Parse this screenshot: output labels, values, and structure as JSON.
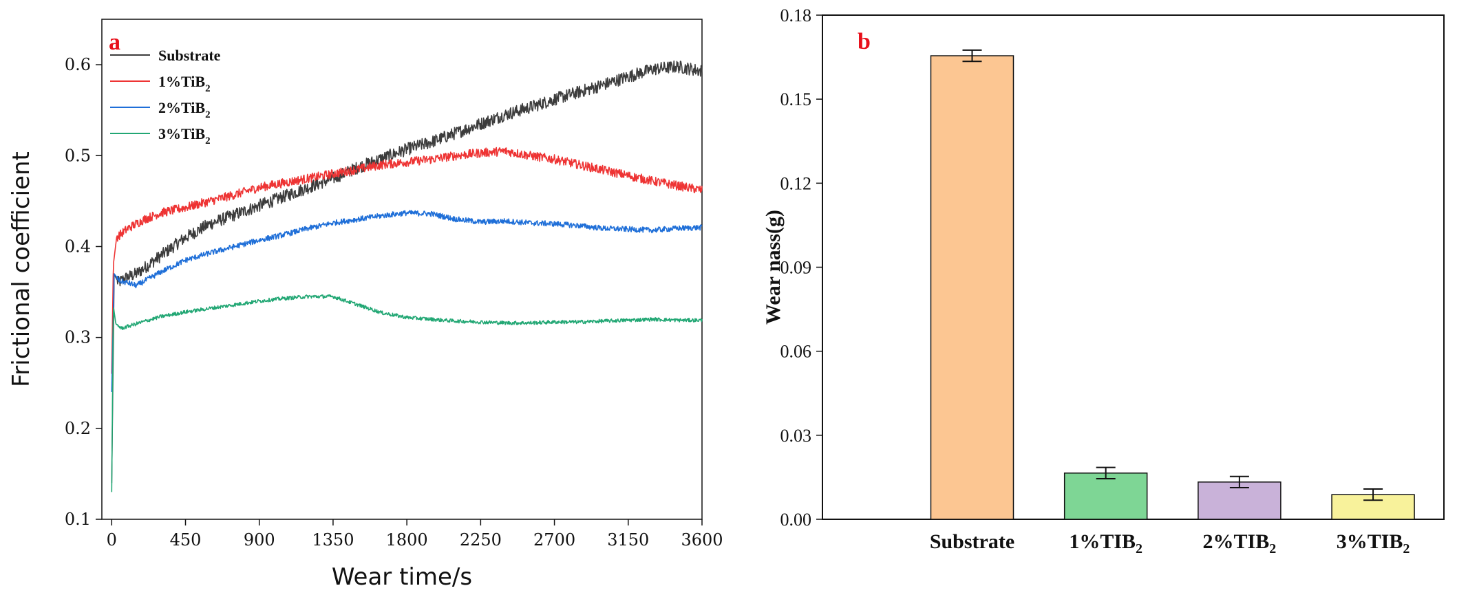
{
  "chart_data": [
    {
      "type": "line",
      "panel_label": "a",
      "panel_label_color": "#e8101b",
      "xlabel": "Wear time/s",
      "ylabel": "Frictional coefficient",
      "xlim": [
        -60,
        3600
      ],
      "ylim": [
        0.1,
        0.65
      ],
      "xticks": [
        0,
        450,
        900,
        1350,
        1800,
        2250,
        2700,
        3150,
        3600
      ],
      "xtick_labels": [
        "0",
        "450",
        "900",
        "1350",
        "1800",
        "2250",
        "2700",
        "3150",
        "3600"
      ],
      "yticks": [
        0.1,
        0.2,
        0.3,
        0.4,
        0.5,
        0.6
      ],
      "ytick_labels": [
        "0.1",
        "0.2",
        "0.3",
        "0.4",
        "0.5",
        "0.6"
      ],
      "legend_position": "top-left",
      "series": [
        {
          "name": "Substrate",
          "label_main": "Substrate",
          "label_sub": "",
          "color": "#3c3c3c",
          "noise": 0.007,
          "x": [
            0,
            15,
            40,
            80,
            150,
            300,
            450,
            600,
            750,
            900,
            1050,
            1200,
            1350,
            1500,
            1650,
            1800,
            1950,
            2100,
            2250,
            2400,
            2550,
            2700,
            2850,
            3000,
            3150,
            3300,
            3450,
            3600
          ],
          "y": [
            0.14,
            0.37,
            0.36,
            0.365,
            0.37,
            0.39,
            0.41,
            0.425,
            0.435,
            0.445,
            0.455,
            0.465,
            0.475,
            0.487,
            0.497,
            0.507,
            0.515,
            0.525,
            0.535,
            0.545,
            0.553,
            0.562,
            0.57,
            0.578,
            0.587,
            0.595,
            0.598,
            0.593
          ]
        },
        {
          "name": "1%TiB2",
          "label_main": "1%TiB",
          "label_sub": "2",
          "color": "#ee3434",
          "noise": 0.005,
          "x": [
            0,
            10,
            30,
            100,
            200,
            300,
            450,
            600,
            750,
            900,
            1050,
            1200,
            1350,
            1500,
            1650,
            1800,
            1950,
            2100,
            2250,
            2400,
            2550,
            2700,
            2850,
            3000,
            3150,
            3300,
            3450,
            3600
          ],
          "y": [
            0.26,
            0.38,
            0.41,
            0.42,
            0.43,
            0.437,
            0.443,
            0.45,
            0.457,
            0.465,
            0.47,
            0.475,
            0.48,
            0.485,
            0.49,
            0.493,
            0.496,
            0.5,
            0.503,
            0.505,
            0.5,
            0.496,
            0.49,
            0.484,
            0.478,
            0.472,
            0.467,
            0.462
          ]
        },
        {
          "name": "2%TiB2",
          "label_main": "2%TiB",
          "label_sub": "2",
          "color": "#1f6fd8",
          "noise": 0.003,
          "x": [
            0,
            15,
            50,
            100,
            150,
            300,
            450,
            600,
            750,
            900,
            1050,
            1200,
            1350,
            1500,
            1650,
            1800,
            1950,
            2100,
            2250,
            2400,
            2550,
            2700,
            2850,
            3000,
            3150,
            3300,
            3450,
            3600
          ],
          "y": [
            0.24,
            0.37,
            0.362,
            0.36,
            0.357,
            0.372,
            0.385,
            0.393,
            0.4,
            0.407,
            0.413,
            0.42,
            0.426,
            0.43,
            0.434,
            0.437,
            0.436,
            0.43,
            0.427,
            0.428,
            0.426,
            0.425,
            0.423,
            0.42,
            0.419,
            0.418,
            0.42,
            0.421
          ]
        },
        {
          "name": "3%TiB2",
          "label_main": "3%TiB",
          "label_sub": "2",
          "color": "#22a774",
          "noise": 0.002,
          "x": [
            0,
            10,
            25,
            60,
            150,
            300,
            450,
            600,
            750,
            900,
            1050,
            1200,
            1350,
            1500,
            1650,
            1800,
            1950,
            2100,
            2250,
            2400,
            2550,
            2700,
            2850,
            3000,
            3150,
            3300,
            3450,
            3600
          ],
          "y": [
            0.13,
            0.335,
            0.315,
            0.31,
            0.315,
            0.323,
            0.328,
            0.332,
            0.336,
            0.34,
            0.343,
            0.345,
            0.345,
            0.336,
            0.327,
            0.322,
            0.32,
            0.318,
            0.317,
            0.316,
            0.316,
            0.317,
            0.317,
            0.318,
            0.319,
            0.32,
            0.319,
            0.319
          ]
        }
      ]
    },
    {
      "type": "bar",
      "panel_label": "b",
      "panel_label_color": "#e8101b",
      "ylabel": "Wear nass(g)",
      "ylim": [
        0,
        0.18
      ],
      "yticks": [
        0.0,
        0.03,
        0.06,
        0.09,
        0.12,
        0.15,
        0.18
      ],
      "ytick_labels": [
        "0.00",
        "0.03",
        "0.06",
        "0.09",
        "0.12",
        "0.15",
        "0.18"
      ],
      "categories": [
        "Substrate",
        "1%TIB2",
        "2%TIB2",
        "3%TIB2"
      ],
      "category_labels": [
        {
          "main": "Substrate",
          "sub": ""
        },
        {
          "main": "1%TIB",
          "sub": "2"
        },
        {
          "main": "2%TIB",
          "sub": "2"
        },
        {
          "main": "3%TIB",
          "sub": "2"
        }
      ],
      "values": [
        0.1655,
        0.0165,
        0.0133,
        0.0088
      ],
      "errors": [
        0.002,
        0.002,
        0.002,
        0.002
      ],
      "colors": [
        "#fcc692",
        "#7ed695",
        "#c9b2d9",
        "#f8f29b"
      ]
    }
  ]
}
